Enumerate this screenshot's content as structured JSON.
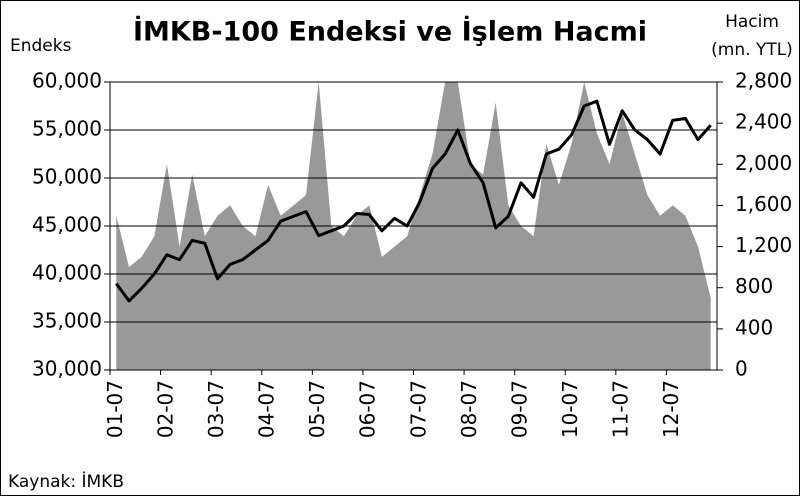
{
  "chart_data": {
    "type": "area-line",
    "title": "İMKB-100 Endeksi ve İşlem Hacmi",
    "y_label": "Endeks",
    "y2_label": [
      "Hacim",
      "(mn. YTL)"
    ],
    "source": "Kaynak: İMKB",
    "categories": [
      "01-07",
      null,
      null,
      null,
      "02-07",
      null,
      null,
      null,
      "03-07",
      null,
      null,
      null,
      "04-07",
      null,
      null,
      null,
      "05-07",
      null,
      null,
      null,
      "06-07",
      null,
      null,
      null,
      "07-07",
      null,
      null,
      null,
      "08-07",
      null,
      null,
      null,
      "09-07",
      null,
      null,
      null,
      "10-07",
      null,
      null,
      null,
      "11-07",
      null,
      null,
      null,
      "12-07",
      null,
      null,
      null
    ],
    "series": [
      {
        "name": "Hacim",
        "type": "area",
        "axis": "y2",
        "color": "#999999",
        "values": [
          1500,
          1000,
          1100,
          1300,
          2000,
          1200,
          1900,
          1300,
          1500,
          1600,
          1400,
          1300,
          1800,
          1500,
          1600,
          1700,
          2800,
          1400,
          1300,
          1500,
          1600,
          1100,
          1200,
          1300,
          1700,
          2100,
          2800,
          2800,
          2000,
          1900,
          2600,
          1600,
          1400,
          1300,
          2200,
          1800,
          2200,
          2800,
          2300,
          2000,
          2500,
          2100,
          1700,
          1500,
          1600,
          1500,
          1200,
          700
        ]
      },
      {
        "name": "Endeks",
        "type": "line",
        "axis": "y",
        "color": "#000000",
        "values": [
          39000,
          37200,
          38500,
          40000,
          42000,
          41500,
          43500,
          43200,
          39500,
          41000,
          41500,
          42500,
          43500,
          45500,
          46000,
          46500,
          44000,
          44500,
          45000,
          46300,
          46200,
          44500,
          45800,
          45000,
          47500,
          51000,
          52500,
          55000,
          51500,
          49500,
          44800,
          46000,
          49500,
          48000,
          52500,
          53000,
          54500,
          57500,
          58000,
          53500,
          57000,
          55000,
          54000,
          52500,
          56000,
          56200,
          54000,
          55500
        ]
      }
    ],
    "ylim": [
      30000,
      60000
    ],
    "yticks": [
      {
        "value": 30000,
        "label": "30,000"
      },
      {
        "value": 35000,
        "label": "35,000"
      },
      {
        "value": 40000,
        "label": "40,000"
      },
      {
        "value": 45000,
        "label": "45,000"
      },
      {
        "value": 50000,
        "label": "50,000"
      },
      {
        "value": 55000,
        "label": "55,000"
      },
      {
        "value": 60000,
        "label": "60,000"
      }
    ],
    "y2lim": [
      0,
      2800
    ],
    "y2ticks": [
      0,
      400,
      800,
      {
        "value": 1200,
        "label": "1,200"
      },
      {
        "value": 1600,
        "label": "1,600"
      },
      {
        "value": 2000,
        "label": "2,000"
      },
      {
        "value": 2400,
        "label": "2,400"
      },
      {
        "value": 2800,
        "label": "2,800"
      }
    ],
    "grid": true
  }
}
